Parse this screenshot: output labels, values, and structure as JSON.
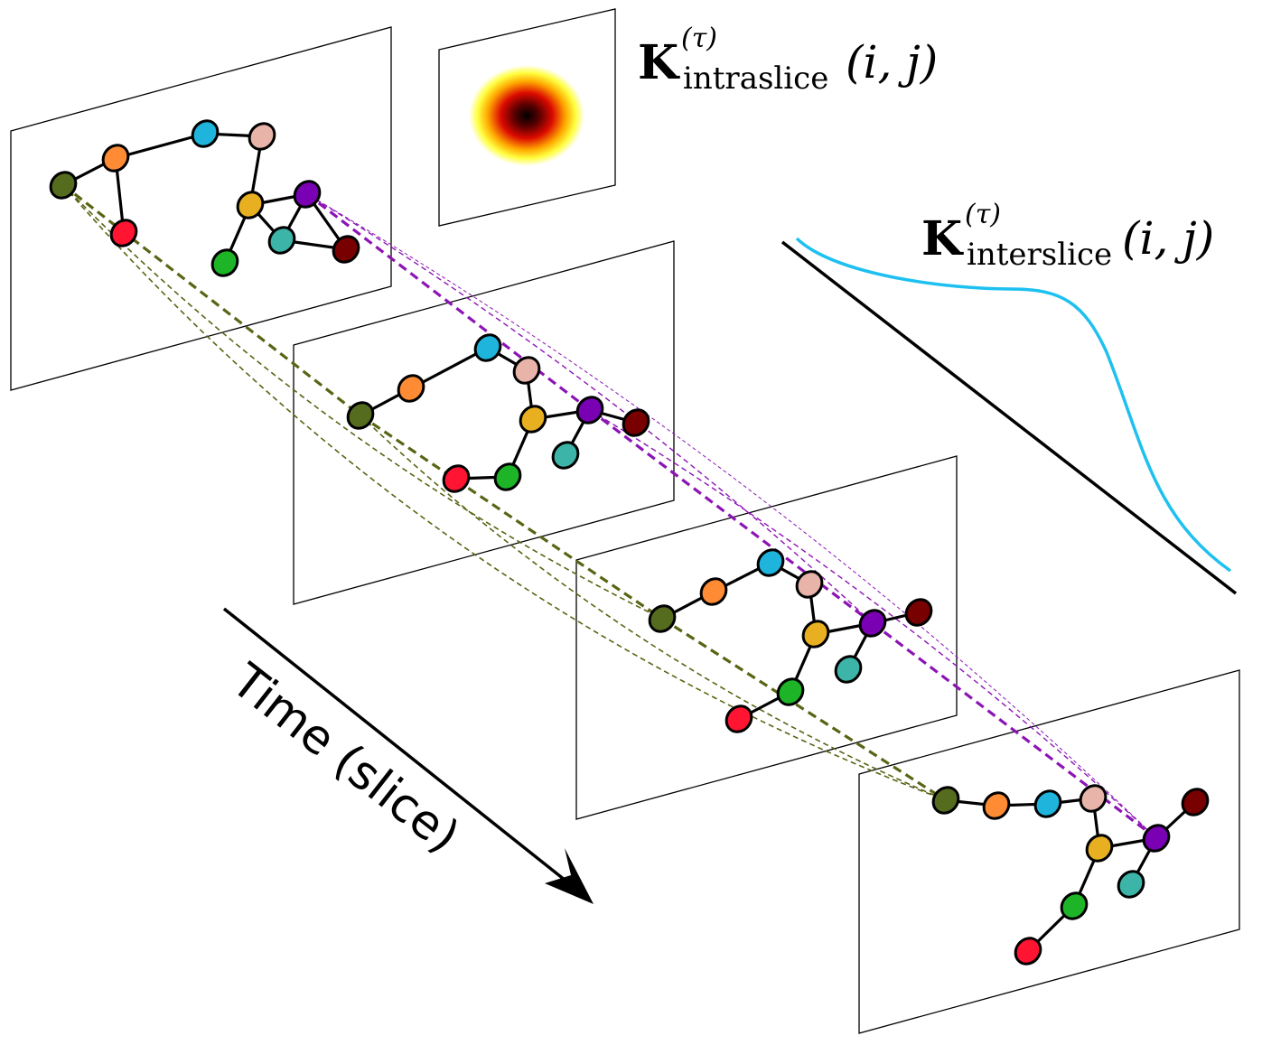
{
  "time_axis": {
    "label": "Time (slice)"
  },
  "intraslice_kernel": {
    "symbol": "K",
    "superscript": "(τ)",
    "subscript": "intraslice",
    "args": "(i, j)"
  },
  "interslice_kernel": {
    "symbol": "K",
    "superscript": "(τ)",
    "subscript": "interslice",
    "args": "(i, j)",
    "curve_color": "#1ec0f0"
  },
  "node_colors": {
    "olive": "#556b1e",
    "orange": "#ff8c35",
    "blue": "#1eb4dc",
    "pink": "#e8b4aa",
    "yellow": "#e8b020",
    "purple": "#7a00b4",
    "teal": "#3cb4a8",
    "darkred": "#780000",
    "green": "#1eb428",
    "red": "#ff1432"
  },
  "edge_colors": {
    "olive_tracking": "#5a6414",
    "purple_tracking": "#8c14b4"
  }
}
